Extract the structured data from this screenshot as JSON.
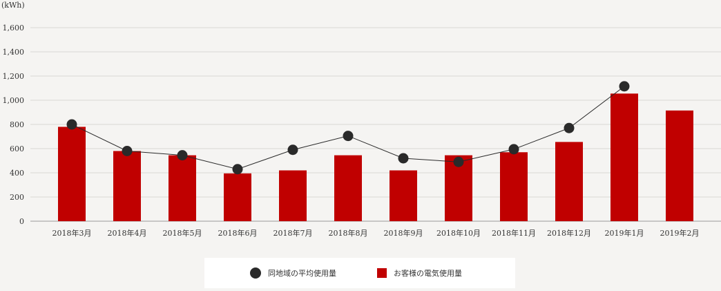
{
  "chart_data": {
    "type": "bar",
    "unit_label": "(kWh)",
    "categories": [
      "2018年3月",
      "2018年4月",
      "2018年5月",
      "2018年6月",
      "2018年7月",
      "2018年8月",
      "2018年9月",
      "2018年10月",
      "2018年11月",
      "2018年12月",
      "2019年1月",
      "2019年2月"
    ],
    "series": [
      {
        "name": "お客様の電気使用量",
        "type": "bar",
        "color": "#c00000",
        "values": [
          780,
          580,
          545,
          395,
          420,
          545,
          420,
          545,
          570,
          655,
          1055,
          915
        ]
      },
      {
        "name": "同地域の平均使用量",
        "type": "line",
        "color": "#2a2a2a",
        "values": [
          800,
          580,
          545,
          430,
          590,
          705,
          520,
          490,
          595,
          770,
          1115,
          null
        ]
      }
    ],
    "y_ticks": [
      "0",
      "200",
      "400",
      "600",
      "800",
      "1,000",
      "1,200",
      "1,400",
      "1,600"
    ],
    "ylim": [
      0,
      1700
    ],
    "grid": true,
    "legend_position": "bottom"
  },
  "legend": {
    "line_label": "同地域の平均使用量",
    "bar_label": "お客様の電気使用量"
  }
}
